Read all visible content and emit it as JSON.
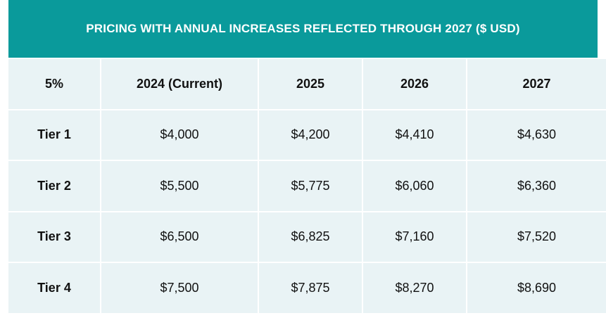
{
  "title": "PRICING WITH ANNUAL INCREASES REFLECTED THROUGH 2027 ($ USD)",
  "colors": {
    "header_bg": "#0a9a9b",
    "cell_bg": "#e9f3f5",
    "header_text": "#ffffff"
  },
  "columns": [
    "5%",
    "2024 (Current)",
    "2025",
    "2026",
    "2027"
  ],
  "rows": [
    {
      "label": "Tier 1",
      "values": [
        "$4,000",
        "$4,200",
        "$4,410",
        "$4,630"
      ]
    },
    {
      "label": "Tier 2",
      "values": [
        "$5,500",
        "$5,775",
        "$6,060",
        "$6,360"
      ]
    },
    {
      "label": "Tier 3",
      "values": [
        "$6,500",
        "$6,825",
        "$7,160",
        "$7,520"
      ]
    },
    {
      "label": "Tier 4",
      "values": [
        "$7,500",
        "$7,875",
        "$8,270",
        "$8,690"
      ]
    }
  ]
}
